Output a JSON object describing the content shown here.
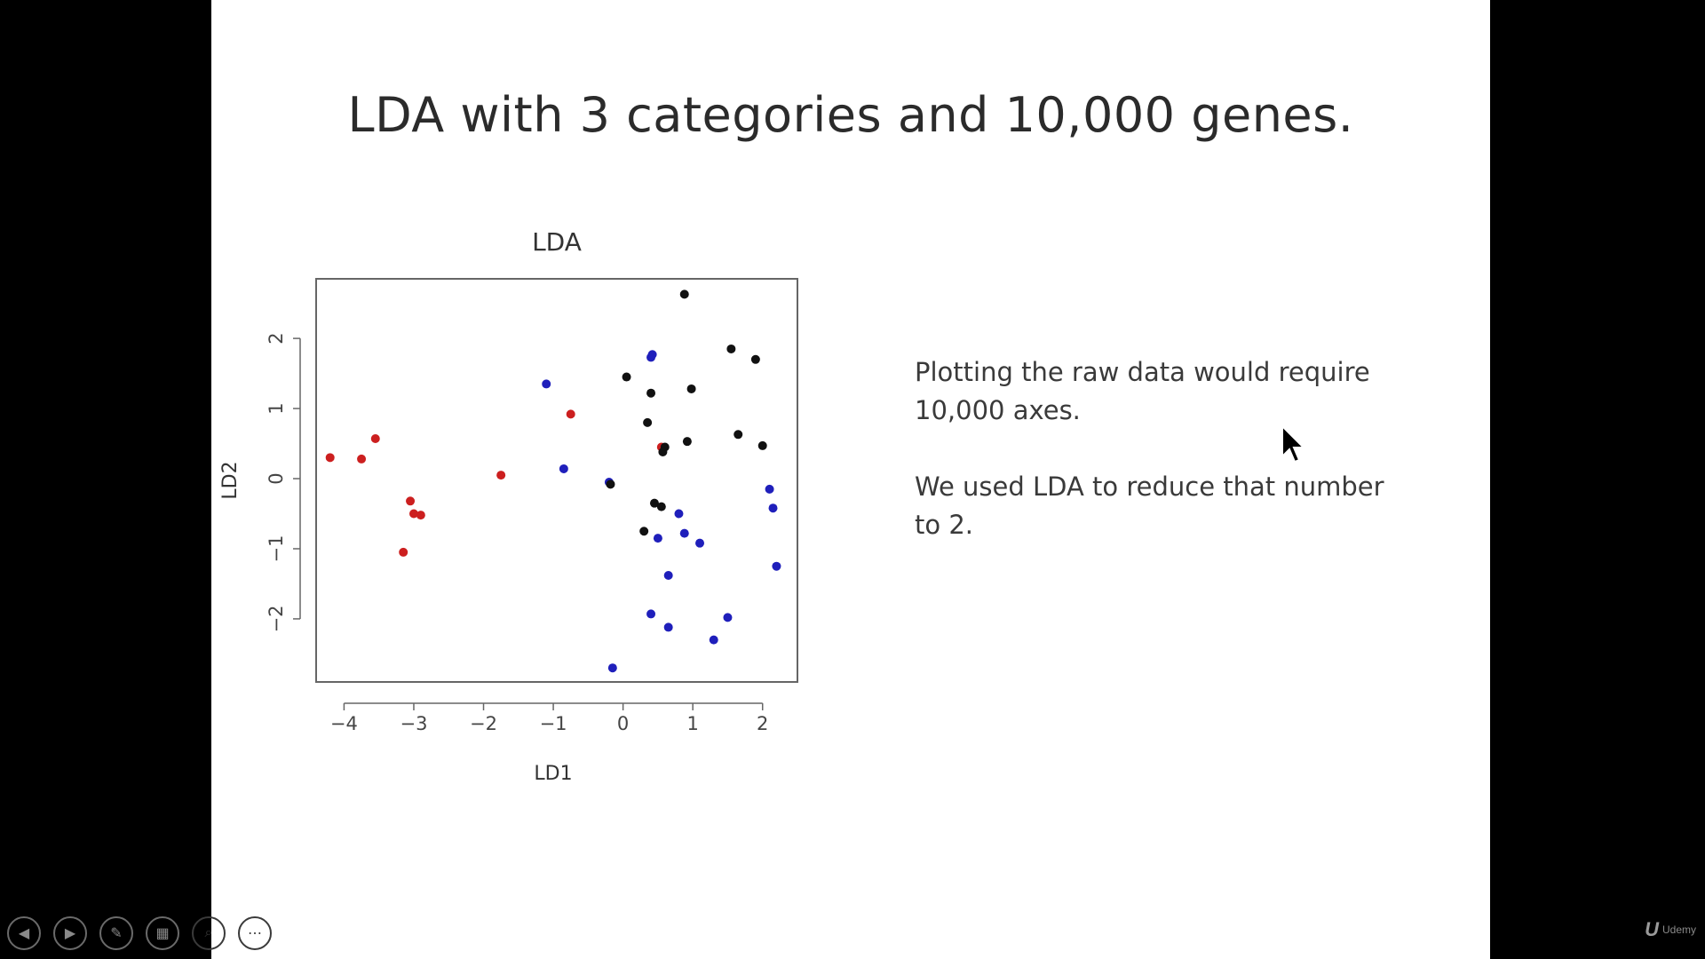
{
  "slide": {
    "title": "LDA with 3 categories and 10,000 genes.",
    "paragraphs": [
      "Plotting the raw data would require 10,000 axes.",
      "We used LDA to reduce that number to 2."
    ]
  },
  "chart_data": {
    "type": "scatter",
    "title": "LDA",
    "xlabel": "LD1",
    "ylabel": "LD2",
    "xlim": [
      -4.4,
      2.5
    ],
    "ylim": [
      -2.9,
      2.85
    ],
    "xticks": [
      "-4",
      "-3",
      "-2",
      "-1",
      "0",
      "1",
      "2"
    ],
    "yticks": [
      "-2",
      "-1",
      "0",
      "1",
      "2"
    ],
    "grid": false,
    "series": [
      {
        "color": "#cc1f1f",
        "points": [
          [
            -4.2,
            0.3
          ],
          [
            -3.75,
            0.28
          ],
          [
            -3.55,
            0.57
          ],
          [
            -3.05,
            -0.32
          ],
          [
            -3.0,
            -0.5
          ],
          [
            -2.9,
            -0.52
          ],
          [
            -3.15,
            -1.05
          ],
          [
            -1.75,
            0.05
          ],
          [
            -0.75,
            0.92
          ],
          [
            0.55,
            0.45
          ]
        ]
      },
      {
        "color": "#1f1fbb",
        "points": [
          [
            -1.1,
            1.35
          ],
          [
            -0.85,
            0.14
          ],
          [
            -0.2,
            -0.05
          ],
          [
            0.4,
            1.73
          ],
          [
            0.42,
            1.77
          ],
          [
            0.5,
            -0.85
          ],
          [
            0.8,
            -0.5
          ],
          [
            0.88,
            -0.78
          ],
          [
            1.1,
            -0.92
          ],
          [
            0.65,
            -1.38
          ],
          [
            0.4,
            -1.93
          ],
          [
            0.65,
            -2.12
          ],
          [
            1.5,
            -1.98
          ],
          [
            1.3,
            -2.3
          ],
          [
            -0.15,
            -2.7
          ],
          [
            2.1,
            -0.15
          ],
          [
            2.15,
            -0.42
          ],
          [
            2.2,
            -1.25
          ]
        ]
      },
      {
        "color": "#111111",
        "points": [
          [
            0.88,
            2.63
          ],
          [
            1.55,
            1.85
          ],
          [
            1.9,
            1.7
          ],
          [
            0.05,
            1.45
          ],
          [
            0.4,
            1.22
          ],
          [
            0.98,
            1.28
          ],
          [
            0.35,
            0.8
          ],
          [
            1.65,
            0.63
          ],
          [
            0.92,
            0.53
          ],
          [
            2.0,
            0.47
          ],
          [
            0.6,
            0.45
          ],
          [
            0.57,
            0.38
          ],
          [
            -0.18,
            -0.08
          ],
          [
            0.45,
            -0.35
          ],
          [
            0.55,
            -0.4
          ],
          [
            0.3,
            -0.75
          ]
        ]
      }
    ]
  },
  "toolbar": {
    "buttons": [
      {
        "icon": "previous-icon",
        "glyph": "◀"
      },
      {
        "icon": "next-icon",
        "glyph": "▶"
      },
      {
        "icon": "pen-icon",
        "glyph": "✎"
      },
      {
        "icon": "slides-icon",
        "glyph": "▦"
      },
      {
        "icon": "zoom-icon",
        "glyph": "⌕"
      },
      {
        "icon": "more-icon",
        "glyph": "⋯"
      }
    ]
  },
  "brand": {
    "mark": "U",
    "name": "Udemy"
  }
}
